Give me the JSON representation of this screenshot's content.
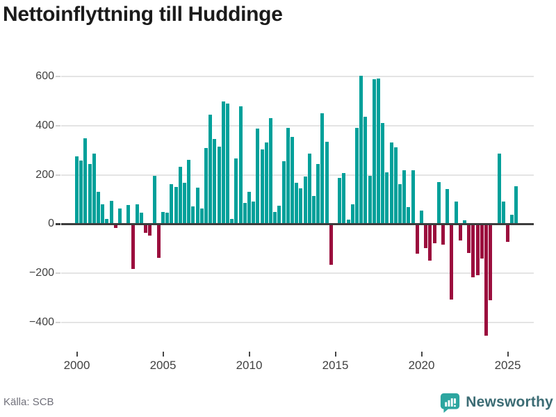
{
  "title": "Nettoinflyttning till Huddinge",
  "footer": {
    "source_label": "Källa: SCB",
    "brand": "Newsworthy"
  },
  "colors": {
    "positive_bar": "#00a09a",
    "negative_bar": "#9b0d3d",
    "gridline": "#e4e4e4",
    "zero_line": "#3d3d3d",
    "axis_text": "#414141",
    "title_text": "#1b1b1b",
    "source_text": "#70707a",
    "brand_text": "#3c6c74",
    "brand_icon": "#2da6a0"
  },
  "chart_data": {
    "type": "bar",
    "title": "Nettoinflyttning till Huddinge",
    "frequency": "quarterly",
    "x_start": "2000-Q1",
    "x_end": "2025-Q3",
    "values": [
      275,
      259,
      350,
      245,
      286,
      130,
      80,
      22,
      94,
      -15,
      62,
      4,
      77,
      -182,
      80,
      45,
      -35,
      -48,
      195,
      -138,
      50,
      45,
      161,
      150,
      232,
      168,
      262,
      71,
      149,
      62,
      310,
      446,
      345,
      316,
      498,
      489,
      20,
      268,
      479,
      87,
      131,
      90,
      388,
      303,
      333,
      432,
      50,
      74,
      256,
      392,
      355,
      169,
      145,
      192,
      287,
      114,
      244,
      452,
      336,
      -167,
      2,
      188,
      207,
      17,
      79,
      392,
      603,
      437,
      195,
      588,
      592,
      411,
      210,
      333,
      312,
      163,
      220,
      69,
      220,
      -122,
      56,
      -98,
      -150,
      -79,
      171,
      -84,
      142,
      -308,
      92,
      -67,
      16,
      -117,
      -216,
      -208,
      -141,
      -455,
      -310,
      2,
      286,
      92,
      -73,
      39,
      154
    ],
    "y_ticks": [
      600,
      400,
      200,
      0,
      -200,
      -400
    ],
    "y_tick_labels": [
      "600",
      "400",
      "200",
      "0",
      "−200",
      "−400"
    ],
    "x_tick_labels": [
      "2000",
      "2005",
      "2010",
      "2015",
      "2020",
      "2025"
    ],
    "x_tick_indices": [
      0,
      20,
      40,
      60,
      80,
      100
    ],
    "ylim": [
      -500,
      660
    ],
    "grid": true,
    "legend": false
  }
}
